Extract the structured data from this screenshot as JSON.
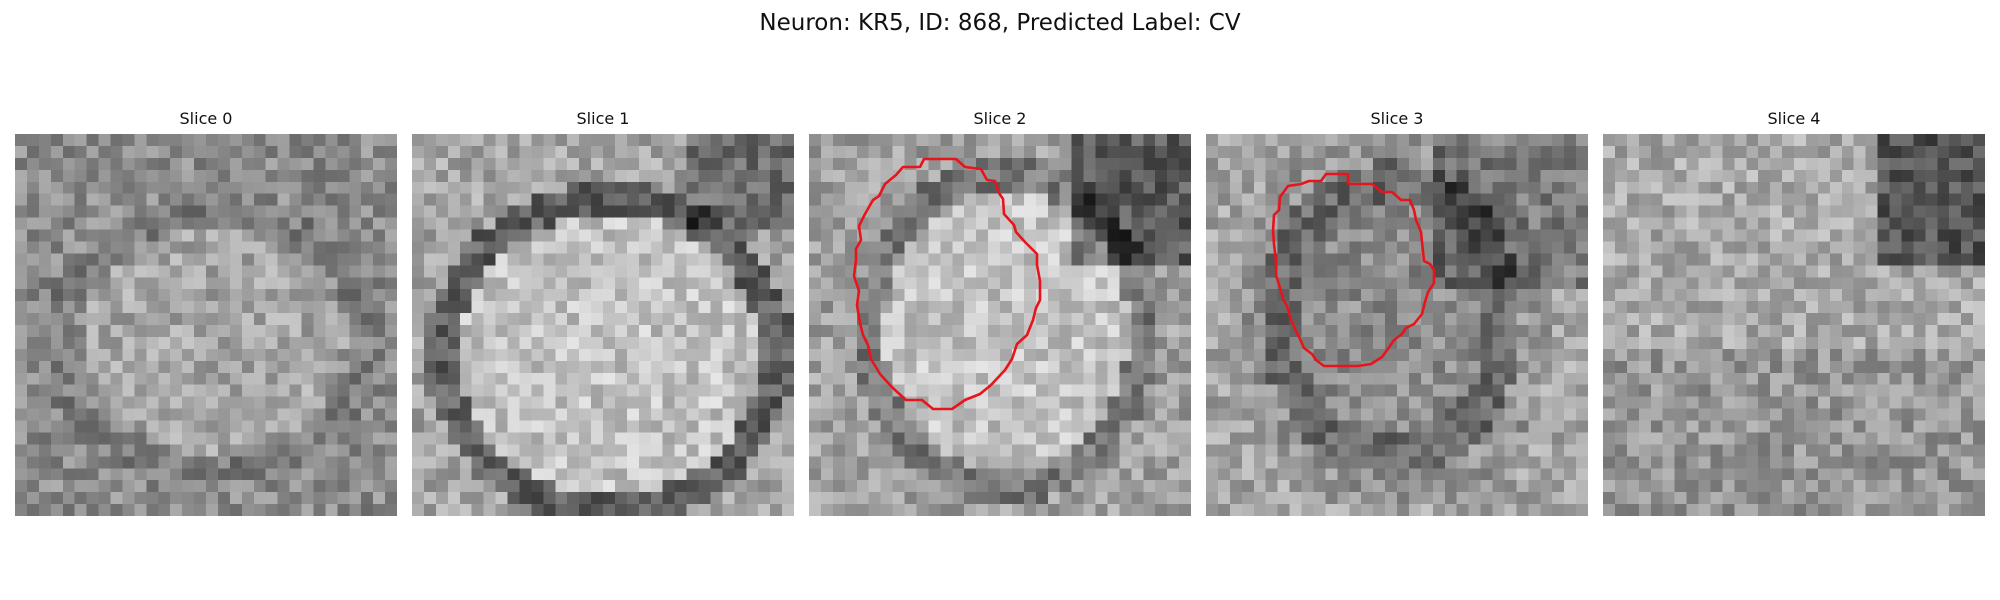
{
  "figure": {
    "title": "Neuron: KR5, ID: 868, Predicted Label: CV"
  },
  "panels": [
    {
      "title": "Slice 0",
      "has_contour": false
    },
    {
      "title": "Slice 1",
      "has_contour": false
    },
    {
      "title": "Slice 2",
      "has_contour": true
    },
    {
      "title": "Slice 3",
      "has_contour": true
    },
    {
      "title": "Slice 4",
      "has_contour": false
    }
  ],
  "colors": {
    "contour": "#e8141c",
    "colormap": "grayscale"
  }
}
